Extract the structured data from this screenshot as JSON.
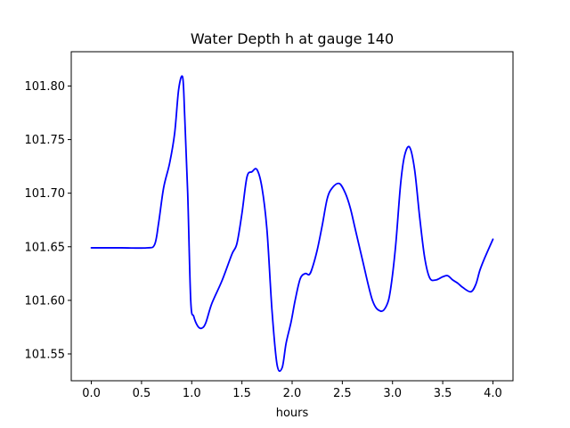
{
  "chart_data": {
    "type": "line",
    "title": "Water Depth h at gauge 140",
    "xlabel": "hours",
    "ylabel": "",
    "xlim": [
      -0.2,
      4.2
    ],
    "ylim": [
      101.525,
      101.832
    ],
    "xticks": [
      0.0,
      0.5,
      1.0,
      1.5,
      2.0,
      2.5,
      3.0,
      3.5,
      4.0
    ],
    "xtick_labels": [
      "0.0",
      "0.5",
      "1.0",
      "1.5",
      "2.0",
      "2.5",
      "3.0",
      "3.5",
      "4.0"
    ],
    "yticks": [
      101.55,
      101.6,
      101.65,
      101.7,
      101.75,
      101.8
    ],
    "ytick_labels": [
      "101.55",
      "101.60",
      "101.65",
      "101.70",
      "101.75",
      "101.80"
    ],
    "grid": false,
    "legend": "none",
    "series": [
      {
        "color": "#0000ff",
        "x": [
          0.0,
          0.3,
          0.55,
          0.63,
          0.67,
          0.72,
          0.78,
          0.83,
          0.87,
          0.91,
          0.93,
          0.96,
          0.99,
          1.02,
          1.06,
          1.1,
          1.14,
          1.2,
          1.3,
          1.4,
          1.45,
          1.5,
          1.55,
          1.6,
          1.65,
          1.7,
          1.75,
          1.8,
          1.85,
          1.9,
          1.94,
          1.99,
          2.03,
          2.08,
          2.13,
          2.17,
          2.2,
          2.25,
          2.3,
          2.35,
          2.4,
          2.47,
          2.53,
          2.58,
          2.63,
          2.7,
          2.8,
          2.88,
          2.94,
          2.98,
          3.03,
          3.08,
          3.12,
          3.17,
          3.22,
          3.27,
          3.32,
          3.37,
          3.43,
          3.5,
          3.55,
          3.6,
          3.65,
          3.7,
          3.78,
          3.83,
          3.87,
          3.92,
          4.0
        ],
        "y": [
          101.649,
          101.649,
          101.649,
          101.652,
          101.672,
          101.705,
          101.728,
          101.756,
          101.797,
          101.808,
          101.772,
          101.7,
          101.6,
          101.585,
          101.576,
          101.574,
          101.579,
          101.597,
          101.618,
          101.643,
          101.653,
          101.681,
          101.715,
          101.72,
          101.722,
          101.705,
          101.665,
          101.59,
          101.54,
          101.537,
          101.56,
          101.58,
          101.6,
          101.62,
          101.625,
          101.624,
          101.63,
          101.647,
          101.67,
          101.695,
          101.705,
          101.709,
          101.7,
          101.686,
          101.666,
          101.638,
          101.6,
          101.59,
          101.595,
          101.61,
          101.65,
          101.708,
          101.735,
          101.743,
          101.722,
          101.678,
          101.64,
          101.621,
          101.619,
          101.622,
          101.623,
          101.619,
          101.616,
          101.612,
          101.608,
          101.615,
          101.628,
          101.64,
          101.657
        ]
      }
    ]
  }
}
